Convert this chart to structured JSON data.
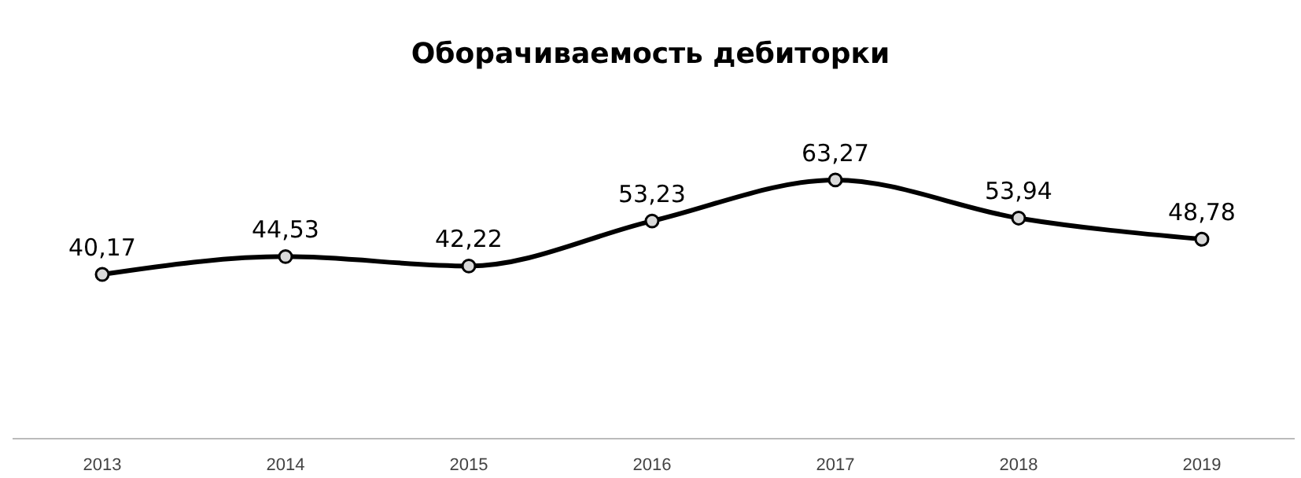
{
  "chart_data": {
    "type": "line",
    "title": "Оборачиваемость дебиторки",
    "categories": [
      "2013",
      "2014",
      "2015",
      "2016",
      "2017",
      "2018",
      "2019"
    ],
    "series": [
      {
        "color": "#000000",
        "values": [
          40.17,
          44.53,
          42.22,
          53.23,
          63.27,
          53.94,
          48.78
        ],
        "value_labels": [
          "40,17",
          "44,53",
          "42,22",
          "53,23",
          "63,27",
          "53,94",
          "48,78"
        ]
      }
    ],
    "marker": "circle",
    "line_style": "solid"
  }
}
